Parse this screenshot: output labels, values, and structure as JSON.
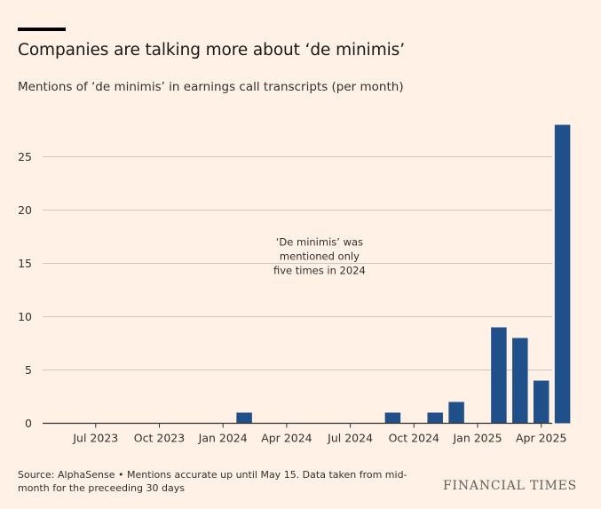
{
  "header": {
    "title": "Companies are talking more about ‘de minimis’",
    "subtitle": "Mentions of ‘de minimis’ in earnings call transcripts (per month)"
  },
  "footer": {
    "source": "Source: AlphaSense • Mentions accurate up until May 15. Data taken from mid-month for the preceeding 30 days",
    "brand": "FINANCIAL TIMES"
  },
  "colors": {
    "bar": "#1F5089",
    "grid": "#CFC5BE",
    "axis": "#33302E",
    "background": "#FFF1E5"
  },
  "chart_data": {
    "type": "bar",
    "title": "Companies are talking more about ‘de minimis’",
    "subtitle": "Mentions of ‘de minimis’ in earnings call transcripts (per month)",
    "categories": [
      "2023-05",
      "2023-06",
      "2023-07",
      "2023-08",
      "2023-09",
      "2023-10",
      "2023-11",
      "2023-12",
      "2024-01",
      "2024-02",
      "2024-03",
      "2024-04",
      "2024-05",
      "2024-06",
      "2024-07",
      "2024-08",
      "2024-09",
      "2024-10",
      "2024-11",
      "2024-12",
      "2025-01",
      "2025-02",
      "2025-03",
      "2025-04",
      "2025-05"
    ],
    "values": [
      0,
      0,
      0,
      0,
      0,
      0,
      0,
      0,
      0,
      1,
      0,
      0,
      0,
      0,
      0,
      0,
      1,
      0,
      1,
      2,
      0,
      9,
      8,
      4,
      28
    ],
    "x_ticks": [
      {
        "category": "2023-07",
        "label": "Jul 2023"
      },
      {
        "category": "2023-10",
        "label": "Oct 2023"
      },
      {
        "category": "2024-01",
        "label": "Jan 2024"
      },
      {
        "category": "2024-04",
        "label": "Apr 2024"
      },
      {
        "category": "2024-07",
        "label": "Jul 2024"
      },
      {
        "category": "2024-10",
        "label": "Oct 2024"
      },
      {
        "category": "2025-01",
        "label": "Jan 2025"
      },
      {
        "category": "2025-04",
        "label": "Apr 2025"
      }
    ],
    "y_ticks": [
      0,
      5,
      10,
      15,
      20,
      25
    ],
    "ylim": [
      0,
      28
    ],
    "grid": true,
    "xlabel": "",
    "ylabel": "",
    "annotation": {
      "lines": [
        "‘De minimis’ was",
        "mentioned only",
        "five times in 2024"
      ],
      "category": "2024-04",
      "value": 17.5
    }
  }
}
